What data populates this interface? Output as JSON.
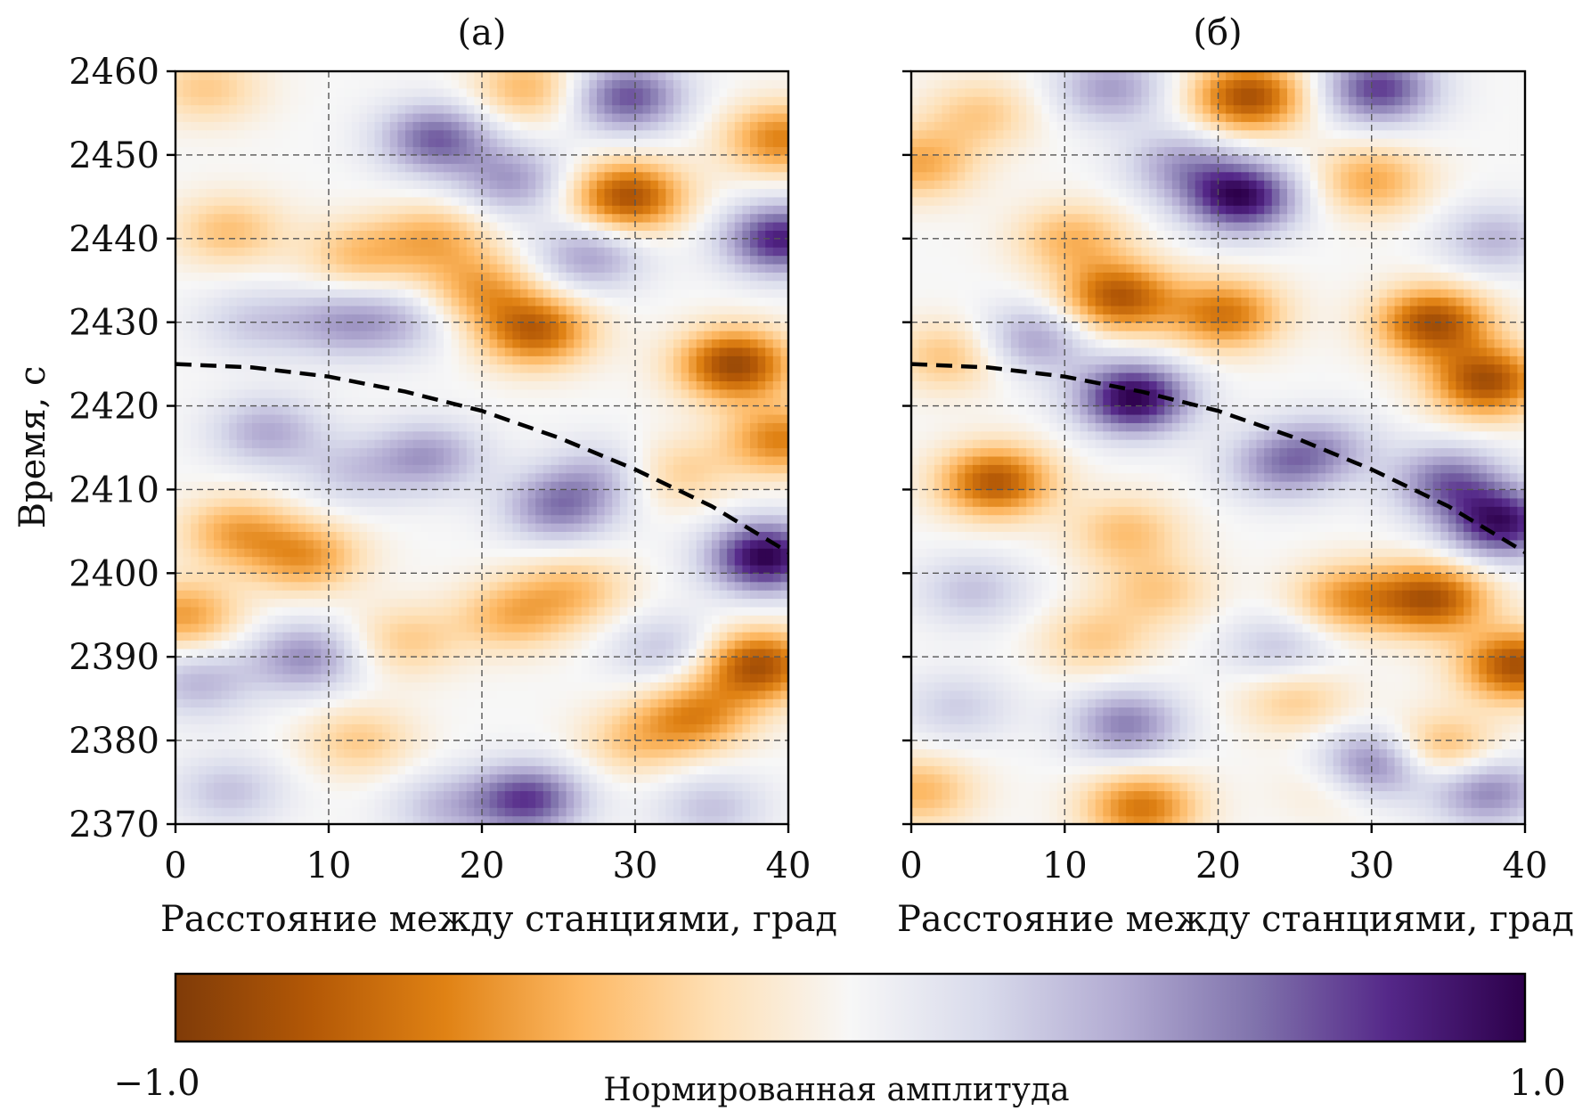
{
  "chart_data": [
    {
      "type": "heatmap",
      "title": "(a)",
      "xlabel": "Расстояние между станциями, град",
      "ylabel": "Время, с",
      "xlim": [
        0,
        40
      ],
      "ylim": [
        2370,
        2460
      ],
      "x_ticks": [
        0,
        10,
        20,
        30,
        40
      ],
      "y_ticks": [
        2370,
        2380,
        2390,
        2400,
        2410,
        2420,
        2430,
        2440,
        2450,
        2460
      ],
      "grid": true,
      "curve": {
        "style": "dashed",
        "color": "#000000",
        "x": [
          0,
          5,
          10,
          15,
          20,
          25,
          30,
          35,
          40
        ],
        "y": [
          2425,
          2424.6,
          2423.5,
          2421.7,
          2419.4,
          2416.2,
          2412.4,
          2408,
          2402.5
        ]
      },
      "blobs": [
        {
          "x": 29.5,
          "y": 2445,
          "v": -0.85
        },
        {
          "x": 36.5,
          "y": 2425,
          "v": -0.9
        },
        {
          "x": 39.5,
          "y": 2416,
          "v": -0.6
        },
        {
          "x": 23.5,
          "y": 2429,
          "v": -0.75
        },
        {
          "x": 20.0,
          "y": 2434,
          "v": -0.45
        },
        {
          "x": 17.0,
          "y": 2440,
          "v": -0.4
        },
        {
          "x": 12.0,
          "y": 2438,
          "v": -0.35
        },
        {
          "x": 3.5,
          "y": 2441,
          "v": -0.35
        },
        {
          "x": 2.0,
          "y": 2458,
          "v": -0.3
        },
        {
          "x": 8.5,
          "y": 2402,
          "v": -0.5
        },
        {
          "x": 4.0,
          "y": 2405,
          "v": -0.45
        },
        {
          "x": 0.5,
          "y": 2395,
          "v": -0.5
        },
        {
          "x": 22.0,
          "y": 2395,
          "v": -0.4
        },
        {
          "x": 26.0,
          "y": 2398,
          "v": -0.35
        },
        {
          "x": 38.0,
          "y": 2389,
          "v": -0.85
        },
        {
          "x": 34.0,
          "y": 2383,
          "v": -0.55
        },
        {
          "x": 30.0,
          "y": 2380,
          "v": -0.3
        },
        {
          "x": 15.0,
          "y": 2392,
          "v": -0.3
        },
        {
          "x": 12.0,
          "y": 2380,
          "v": -0.3
        },
        {
          "x": 23.0,
          "y": 2458,
          "v": -0.4
        },
        {
          "x": 39.5,
          "y": 2452,
          "v": -0.6
        },
        {
          "x": 32.5,
          "y": 2412,
          "v": -0.3
        },
        {
          "x": 38.5,
          "y": 2402,
          "v": 1.0
        },
        {
          "x": 39.5,
          "y": 2440,
          "v": 0.85
        },
        {
          "x": 29.5,
          "y": 2457,
          "v": 0.7
        },
        {
          "x": 17.0,
          "y": 2452,
          "v": 0.65
        },
        {
          "x": 22.0,
          "y": 2447,
          "v": 0.45
        },
        {
          "x": 27.0,
          "y": 2438,
          "v": 0.45
        },
        {
          "x": 14.5,
          "y": 2430,
          "v": 0.3
        },
        {
          "x": 10.5,
          "y": 2430,
          "v": 0.35
        },
        {
          "x": 6.0,
          "y": 2417,
          "v": 0.4
        },
        {
          "x": 16.5,
          "y": 2414,
          "v": 0.45
        },
        {
          "x": 25.0,
          "y": 2408,
          "v": 0.55
        },
        {
          "x": 28.0,
          "y": 2412,
          "v": 0.3
        },
        {
          "x": 8.5,
          "y": 2390,
          "v": 0.5
        },
        {
          "x": 1.5,
          "y": 2387,
          "v": 0.35
        },
        {
          "x": 23.0,
          "y": 2373,
          "v": 0.75
        },
        {
          "x": 17.5,
          "y": 2372,
          "v": 0.3
        },
        {
          "x": 3.5,
          "y": 2374,
          "v": 0.3
        },
        {
          "x": 32.0,
          "y": 2391,
          "v": 0.3
        },
        {
          "x": 35.0,
          "y": 2372,
          "v": 0.3
        },
        {
          "x": 11.5,
          "y": 2412,
          "v": 0.25
        },
        {
          "x": 5.0,
          "y": 2430,
          "v": 0.25
        }
      ]
    },
    {
      "type": "heatmap",
      "title": "(б)",
      "xlabel": "Расстояние между станциями, град",
      "ylabel": "",
      "xlim": [
        0,
        40
      ],
      "ylim": [
        2370,
        2460
      ],
      "x_ticks": [
        0,
        10,
        20,
        30,
        40
      ],
      "y_ticks": [
        2370,
        2380,
        2390,
        2400,
        2410,
        2420,
        2430,
        2440,
        2450,
        2460
      ],
      "grid": true,
      "curve": {
        "style": "dashed",
        "color": "#000000",
        "x": [
          0,
          5,
          10,
          15,
          20,
          25,
          30,
          35,
          40
        ],
        "y": [
          2425,
          2424.6,
          2423.5,
          2421.7,
          2419.4,
          2416.2,
          2412.4,
          2408,
          2402.5
        ]
      },
      "blobs": [
        {
          "x": 14.5,
          "y": 2421,
          "v": 1.0
        },
        {
          "x": 21.5,
          "y": 2445,
          "v": 0.95
        },
        {
          "x": 38.5,
          "y": 2406,
          "v": 0.9
        },
        {
          "x": 35.0,
          "y": 2411,
          "v": 0.6
        },
        {
          "x": 30.0,
          "y": 2377,
          "v": 0.7
        },
        {
          "x": 30.5,
          "y": 2458,
          "v": 0.75
        },
        {
          "x": 14.0,
          "y": 2382,
          "v": 0.55
        },
        {
          "x": 8.0,
          "y": 2428,
          "v": 0.45
        },
        {
          "x": 17.5,
          "y": 2449,
          "v": 0.4
        },
        {
          "x": 24.0,
          "y": 2413,
          "v": 0.45
        },
        {
          "x": 27.0,
          "y": 2415,
          "v": 0.35
        },
        {
          "x": 13.0,
          "y": 2458,
          "v": 0.45
        },
        {
          "x": 38.0,
          "y": 2440,
          "v": 0.35
        },
        {
          "x": 37.5,
          "y": 2374,
          "v": 0.55
        },
        {
          "x": 4.0,
          "y": 2398,
          "v": 0.3
        },
        {
          "x": 24.0,
          "y": 2391,
          "v": 0.3
        },
        {
          "x": 3.0,
          "y": 2384,
          "v": 0.25
        },
        {
          "x": 22.0,
          "y": 2457,
          "v": -0.85
        },
        {
          "x": 13.5,
          "y": 2433,
          "v": -0.8
        },
        {
          "x": 10.5,
          "y": 2440,
          "v": -0.4
        },
        {
          "x": 20.5,
          "y": 2431,
          "v": -0.65
        },
        {
          "x": 34.0,
          "y": 2430,
          "v": -0.85
        },
        {
          "x": 37.5,
          "y": 2423,
          "v": -0.85
        },
        {
          "x": 30.0,
          "y": 2447,
          "v": -0.45
        },
        {
          "x": 34.0,
          "y": 2397,
          "v": -0.8
        },
        {
          "x": 28.5,
          "y": 2397,
          "v": -0.5
        },
        {
          "x": 39.5,
          "y": 2389,
          "v": -0.85
        },
        {
          "x": 5.5,
          "y": 2411,
          "v": -0.8
        },
        {
          "x": 2.5,
          "y": 2426,
          "v": -0.35
        },
        {
          "x": 0.5,
          "y": 2449,
          "v": -0.45
        },
        {
          "x": 4.5,
          "y": 2455,
          "v": -0.3
        },
        {
          "x": 14.0,
          "y": 2405,
          "v": -0.35
        },
        {
          "x": 16.0,
          "y": 2398,
          "v": -0.3
        },
        {
          "x": 12.0,
          "y": 2392,
          "v": -0.3
        },
        {
          "x": 25.0,
          "y": 2385,
          "v": -0.3
        },
        {
          "x": 34.5,
          "y": 2379,
          "v": -0.45
        },
        {
          "x": 15.0,
          "y": 2372,
          "v": -0.65
        },
        {
          "x": 0.5,
          "y": 2374,
          "v": -0.4
        },
        {
          "x": 28.0,
          "y": 2375,
          "v": -0.25
        }
      ]
    }
  ],
  "colorbar": {
    "label": "Нормированная амплитуда",
    "min_label": "−1.0",
    "max_label": "1.0",
    "min": -1.0,
    "max": 1.0,
    "colormap": "PuOr",
    "stops": [
      "#7f3b08",
      "#b35806",
      "#e08214",
      "#fdb863",
      "#fee0b6",
      "#f7f7f7",
      "#d8daeb",
      "#b2abd2",
      "#8073ac",
      "#542788",
      "#2d004b"
    ]
  }
}
